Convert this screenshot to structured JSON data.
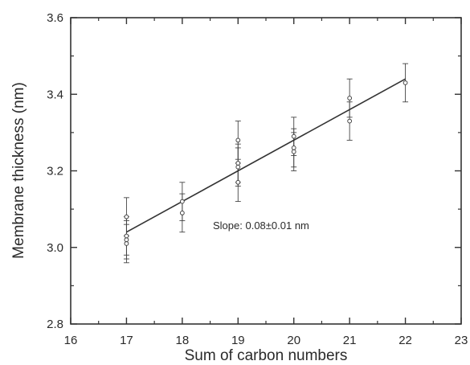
{
  "chart_data": {
    "type": "scatter",
    "xlabel": "Sum of carbon numbers",
    "ylabel": "Membrane thickness  (nm)",
    "xlim": [
      16,
      23
    ],
    "ylim": [
      2.8,
      3.6
    ],
    "x_ticks": [
      "16",
      "17",
      "18",
      "19",
      "20",
      "21",
      "22",
      "23"
    ],
    "y_ticks": [
      "2.8",
      "3.0",
      "3.2",
      "3.4",
      "3.6"
    ],
    "grid": false,
    "annotation": "Slope: 0.08±0.01 nm",
    "series": [
      {
        "marker": "open-circle",
        "points": [
          {
            "x": 17,
            "y": 3.08,
            "err": 0.05
          },
          {
            "x": 17,
            "y": 3.03,
            "err": 0.05
          },
          {
            "x": 17,
            "y": 3.02,
            "err": 0.05
          },
          {
            "x": 17,
            "y": 3.01,
            "err": 0.05
          },
          {
            "x": 18,
            "y": 3.12,
            "err": 0.05
          },
          {
            "x": 18,
            "y": 3.09,
            "err": 0.05
          },
          {
            "x": 19,
            "y": 3.28,
            "err": 0.05
          },
          {
            "x": 19,
            "y": 3.22,
            "err": 0.05
          },
          {
            "x": 19,
            "y": 3.21,
            "err": 0.05
          },
          {
            "x": 19,
            "y": 3.17,
            "err": 0.05
          },
          {
            "x": 20,
            "y": 3.29,
            "err": 0.05
          },
          {
            "x": 20,
            "y": 3.26,
            "err": 0.05
          },
          {
            "x": 20,
            "y": 3.25,
            "err": 0.05
          },
          {
            "x": 21,
            "y": 3.39,
            "err": 0.05
          },
          {
            "x": 21,
            "y": 3.33,
            "err": 0.05
          },
          {
            "x": 22,
            "y": 3.43,
            "err": 0.05
          }
        ]
      }
    ],
    "fit_line": {
      "x": [
        17,
        22
      ],
      "y": [
        3.04,
        3.44
      ]
    },
    "colors": {
      "axis": "#333333",
      "marker": "#444444",
      "line": "#333333"
    }
  }
}
